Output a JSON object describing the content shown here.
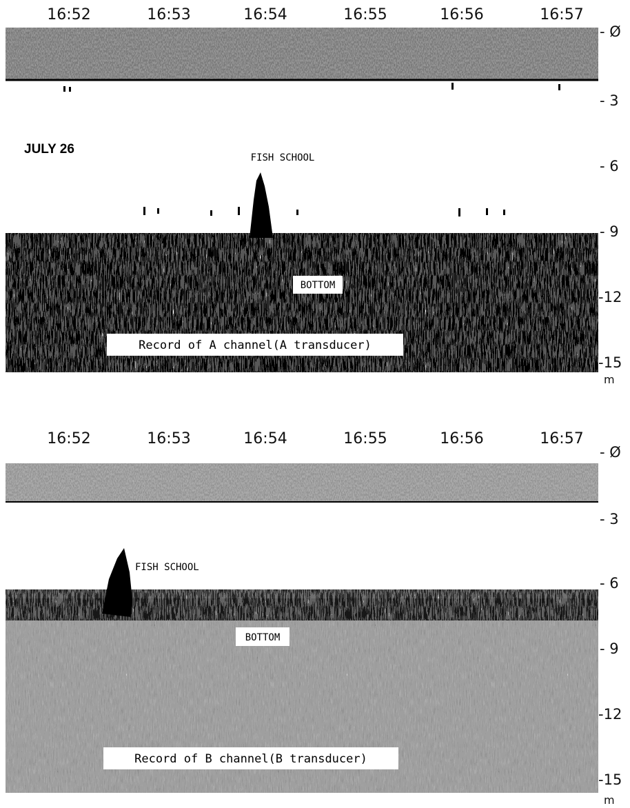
{
  "date": "JULY 26",
  "panels": [
    {
      "times": [
        "16:52",
        "16:53",
        "16:54",
        "16:55",
        "16:56",
        "16:57"
      ],
      "depth_labels": [
        "- Ø",
        "- 3",
        "- 6",
        "- 9",
        "-12",
        "-15"
      ],
      "unit": "m",
      "fish": "FISH SCHOOL",
      "bottom": "BOTTOM",
      "record": "Record of A channel(A transducer)"
    },
    {
      "times": [
        "16:52",
        "16:53",
        "16:54",
        "16:55",
        "16:56",
        "16:57"
      ],
      "depth_labels": [
        "- Ø",
        "- 3",
        "- 6",
        "- 9",
        "-12",
        "-15"
      ],
      "unit": "m",
      "fish": "FISH SCHOOL",
      "bottom": "BOTTOM",
      "record": "Record of B channel(B transducer)"
    }
  ]
}
